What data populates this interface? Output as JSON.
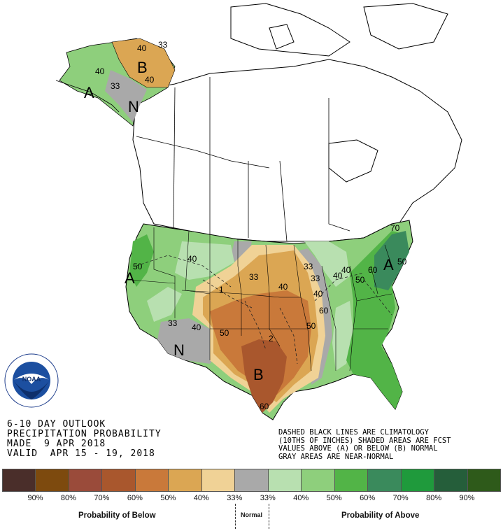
{
  "map": {
    "contour_labels": {
      "c40a": "40",
      "c33a": "33",
      "c40b": "40",
      "c40c": "40",
      "c33b": "33",
      "c40d": "40",
      "c50a": "50",
      "c40e": "40",
      "c33c": "33",
      "c40f": "40",
      "c50b": "50",
      "c33d": "33",
      "c33e": "33",
      "c40g": "40",
      "c40h": "40",
      "c50c": "50",
      "c50d": "50",
      "c60a": "60",
      "c50e": "50",
      "c70a": "70",
      "c60b": "60",
      "c40i": "40",
      "c33f": "33",
      "c1": "1",
      "c2": "2",
      "c60c": "60"
    },
    "region_letters": {
      "alaska_below": "B",
      "alaska_above": "A",
      "alaska_normal": "N",
      "west_above": "A",
      "southwest_normal": "N",
      "texas_below": "B",
      "east_above": "A"
    }
  },
  "title_block": {
    "line1": "6-10 DAY OUTLOOK",
    "line2": "PRECIPITATION PROBABILITY",
    "line3": "MADE  9 APR 2018",
    "line4": "VALID  APR 15 - 19, 2018"
  },
  "notes": {
    "line1": "DASHED BLACK LINES ARE CLIMATOLOGY",
    "line2": "(10THS OF INCHES) SHADED AREAS ARE FCST",
    "line3": "VALUES ABOVE (A) OR BELOW (B) NORMAL",
    "line4": "GRAY AREAS ARE NEAR-NORMAL"
  },
  "legend": {
    "swatches": [
      {
        "color": "#4a2e2a"
      },
      {
        "color": "#7d4a0e"
      },
      {
        "color": "#9a4b3a"
      },
      {
        "color": "#a9572d"
      },
      {
        "color": "#c9793a"
      },
      {
        "color": "#dba653"
      },
      {
        "color": "#f0d296"
      },
      {
        "color": "#a9a9a9"
      },
      {
        "color": "#b8e0b0"
      },
      {
        "color": "#8ecf7c"
      },
      {
        "color": "#52b447"
      },
      {
        "color": "#3a8a5c"
      },
      {
        "color": "#1f9a3c"
      },
      {
        "color": "#255e3a"
      },
      {
        "color": "#2e5a1a"
      }
    ],
    "percents": [
      "90%",
      "80%",
      "70%",
      "60%",
      "50%",
      "40%",
      "33%",
      "33%",
      "40%",
      "50%",
      "60%",
      "70%",
      "80%",
      "90%"
    ],
    "caption_below": "Probability of Below",
    "caption_normal": "Normal",
    "caption_above": "Probability of Above"
  },
  "logo": {
    "text": "NOAA",
    "ring_text": "NATIONAL OCEANIC AND ATMOSPHERIC ADMINISTRATION · U.S. DEPARTMENT OF COMMERCE"
  },
  "colors": {
    "below_33": "#f0d296",
    "below_40": "#dba653",
    "below_50": "#c9793a",
    "below_60": "#a9572d",
    "normal": "#a9a9a9",
    "above_33": "#b8e0b0",
    "above_40": "#8ecf7c",
    "above_50": "#52b447",
    "above_60": "#3a8a5c"
  }
}
